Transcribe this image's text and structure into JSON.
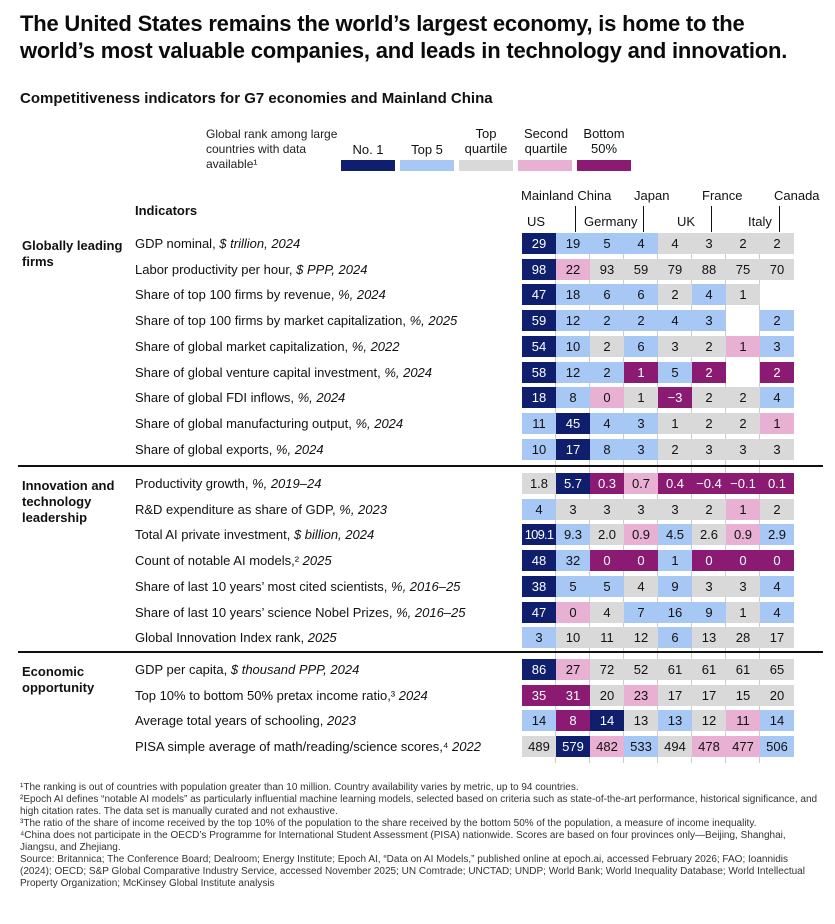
{
  "title": "The United States remains the world’s largest economy, is home to the world’s most valuable companies, and leads in technology and innovation.",
  "subtitle": "Competitiveness indicators for G7 economies and Mainland China",
  "legend": {
    "description": "Global rank among large countries with data available¹",
    "items": [
      {
        "label": "No. 1",
        "color": "#0f1f6e"
      },
      {
        "label": "Top 5",
        "color": "#a7c7f5"
      },
      {
        "label": "Top quartile",
        "color": "#d9d9d9"
      },
      {
        "label": "Second quartile",
        "color": "#e8b1d4"
      },
      {
        "label": "Bottom 50%",
        "color": "#8a1a72"
      }
    ]
  },
  "columns": [
    "US",
    "Mainland China",
    "Germany",
    "Japan",
    "UK",
    "France",
    "Italy",
    "Canada"
  ],
  "indicators_header": "Indicators",
  "sections": [
    {
      "name": "Globally leading firms",
      "rows": [
        {
          "label": "GDP nominal, ",
          "label_em": "$ trillion, 2024",
          "values": [
            "29",
            "19",
            "5",
            "4",
            "4",
            "3",
            "2",
            "2"
          ],
          "classes": [
            "n",
            "t",
            "t",
            "t",
            "q",
            "q",
            "q",
            "q"
          ]
        },
        {
          "label": "Labor productivity per hour, ",
          "label_em": "$ PPP, 2024",
          "values": [
            "98",
            "22",
            "93",
            "59",
            "79",
            "88",
            "75",
            "70"
          ],
          "classes": [
            "n",
            "s",
            "q",
            "q",
            "q",
            "q",
            "q",
            "q"
          ]
        },
        {
          "label": "Share of top 100 firms by revenue, ",
          "label_em": "%, 2024",
          "values": [
            "47",
            "18",
            "6",
            "6",
            "2",
            "4",
            "1",
            ""
          ],
          "classes": [
            "n",
            "t",
            "t",
            "t",
            "q",
            "t",
            "q",
            "e"
          ]
        },
        {
          "label": "Share of top 100 firms by market capitalization, ",
          "label_em": "%, 2025",
          "values": [
            "59",
            "12",
            "2",
            "2",
            "4",
            "3",
            "",
            "2"
          ],
          "classes": [
            "n",
            "t",
            "t",
            "t",
            "t",
            "t",
            "e",
            "t"
          ]
        },
        {
          "label": "Share of global market capitalization, ",
          "label_em": "%, 2022",
          "values": [
            "54",
            "10",
            "2",
            "6",
            "3",
            "2",
            "1",
            "3"
          ],
          "classes": [
            "n",
            "t",
            "q",
            "t",
            "q",
            "q",
            "s",
            "t"
          ]
        },
        {
          "label": "Share of global venture capital investment, ",
          "label_em": "%, 2024",
          "values": [
            "58",
            "12",
            "2",
            "1",
            "5",
            "2",
            "",
            "2"
          ],
          "classes": [
            "n",
            "t",
            "t",
            "b",
            "t",
            "b",
            "e",
            "b"
          ]
        },
        {
          "label": "Share of global FDI inflows, ",
          "label_em": "%, 2024",
          "values": [
            "18",
            "8",
            "0",
            "1",
            "−3",
            "2",
            "2",
            "4"
          ],
          "classes": [
            "n",
            "t",
            "s",
            "q",
            "b",
            "q",
            "q",
            "t"
          ]
        },
        {
          "label": "Share of global manufacturing output, ",
          "label_em": "%, 2024",
          "values": [
            "11",
            "45",
            "4",
            "3",
            "1",
            "2",
            "2",
            "1"
          ],
          "classes": [
            "t",
            "n",
            "t",
            "t",
            "q",
            "q",
            "q",
            "s"
          ]
        },
        {
          "label": "Share of global exports, ",
          "label_em": "%, 2024",
          "values": [
            "10",
            "17",
            "8",
            "3",
            "2",
            "3",
            "3",
            "3"
          ],
          "classes": [
            "t",
            "n",
            "t",
            "t",
            "q",
            "q",
            "q",
            "q"
          ]
        }
      ]
    },
    {
      "name": "Innovation and technology leadership",
      "rows": [
        {
          "label": "Productivity growth, ",
          "label_em": "%, 2019–24",
          "values": [
            "1.8",
            "5.7",
            "0.3",
            "0.7",
            "0.4",
            "−0.4",
            "−0.1",
            "0.1"
          ],
          "classes": [
            "q",
            "n",
            "b",
            "s",
            "b",
            "b",
            "b",
            "b"
          ]
        },
        {
          "label": "R&D expenditure as share of GDP, ",
          "label_em": "%, 2023",
          "values": [
            "4",
            "3",
            "3",
            "3",
            "3",
            "2",
            "1",
            "2"
          ],
          "classes": [
            "t",
            "q",
            "q",
            "q",
            "q",
            "q",
            "s",
            "q"
          ]
        },
        {
          "label": "Total AI private investment, ",
          "label_em": "$ billion, 2024",
          "values": [
            "109.1",
            "9.3",
            "2.0",
            "0.9",
            "4.5",
            "2.6",
            "0.9",
            "2.9"
          ],
          "classes": [
            "n",
            "t",
            "q",
            "s",
            "t",
            "q",
            "s",
            "t"
          ]
        },
        {
          "label": "Count of notable AI models,² ",
          "label_em": "2025",
          "values": [
            "48",
            "32",
            "0",
            "0",
            "1",
            "0",
            "0",
            "0"
          ],
          "classes": [
            "n",
            "t",
            "b",
            "b",
            "t",
            "b",
            "b",
            "b"
          ]
        },
        {
          "label": "Share of last 10 years’ most cited scientists, ",
          "label_em": "%,  2016–25",
          "values": [
            "38",
            "5",
            "5",
            "4",
            "9",
            "3",
            "3",
            "4"
          ],
          "classes": [
            "n",
            "t",
            "t",
            "q",
            "t",
            "q",
            "q",
            "t"
          ]
        },
        {
          "label": "Share of last 10 years’ science Nobel Prizes, ",
          "label_em": "%, 2016–25",
          "values": [
            "47",
            "0",
            "4",
            "7",
            "16",
            "9",
            "1",
            "4"
          ],
          "classes": [
            "n",
            "s",
            "q",
            "t",
            "t",
            "t",
            "q",
            "t"
          ]
        },
        {
          "label": "Global Innovation Index rank, ",
          "label_em": "2025",
          "values": [
            "3",
            "10",
            "11",
            "12",
            "6",
            "13",
            "28",
            "17"
          ],
          "classes": [
            "t",
            "q",
            "q",
            "q",
            "t",
            "q",
            "q",
            "q"
          ]
        }
      ]
    },
    {
      "name": "Economic opportunity",
      "rows": [
        {
          "label": "GDP per capita, ",
          "label_em": "$ thousand PPP, 2024",
          "values": [
            "86",
            "27",
            "72",
            "52",
            "61",
            "61",
            "61",
            "65"
          ],
          "classes": [
            "n",
            "s",
            "q",
            "q",
            "q",
            "q",
            "q",
            "q"
          ]
        },
        {
          "label": "Top 10% to bottom 50% pretax income ratio,³ ",
          "label_em": "2024",
          "values": [
            "35",
            "31",
            "20",
            "23",
            "17",
            "17",
            "15",
            "20"
          ],
          "classes": [
            "b",
            "b",
            "q",
            "s",
            "q",
            "q",
            "q",
            "q"
          ]
        },
        {
          "label": "Average total years of schooling, ",
          "label_em": "2023",
          "values": [
            "14",
            "8",
            "14",
            "13",
            "13",
            "12",
            "11",
            "14"
          ],
          "classes": [
            "t",
            "b",
            "n",
            "q",
            "t",
            "q",
            "s",
            "t"
          ]
        },
        {
          "label": "PISA simple average of math/reading/science scores,⁴ ",
          "label_em": "2022",
          "values": [
            "489",
            "579",
            "482",
            "533",
            "494",
            "478",
            "477",
            "506"
          ],
          "classes": [
            "q",
            "n",
            "s",
            "t",
            "q",
            "s",
            "s",
            "t"
          ]
        }
      ]
    }
  ],
  "footnotes": [
    "¹The ranking is out of countries with population greater than 10 million. Country availability varies by metric, up to 94 countries.",
    "²Epoch AI defines “notable AI models” as particularly influential machine learning models, selected based on criteria such as state-of-the-art performance, historical significance, and high citation rates. The data set is manually curated and not exhaustive.",
    "³The ratio of the share of income received by the top 10% of the population to the share received by the bottom 50% of the population, a measure of income inequality.",
    "⁴China does not participate in the OECD’s Programme for International Student Assessment (PISA) nationwide. Scores are based on four provinces only—Beijing, Shanghai, Jiangsu, and Zhejiang.",
    "Source: Britannica; The Conference Board; Dealroom; Energy Institute; Epoch AI, “Data on AI Models,” published online at epoch.ai, accessed February 2026; FAO; Ioannidis (2024); OECD; S&P Global Comparative Industry Service, accessed November 2025; UN Comtrade; UNCTAD; UNDP; World Bank; World Inequality Database; World Intellectual Property Organization; McKinsey Global Institute analysis"
  ]
}
